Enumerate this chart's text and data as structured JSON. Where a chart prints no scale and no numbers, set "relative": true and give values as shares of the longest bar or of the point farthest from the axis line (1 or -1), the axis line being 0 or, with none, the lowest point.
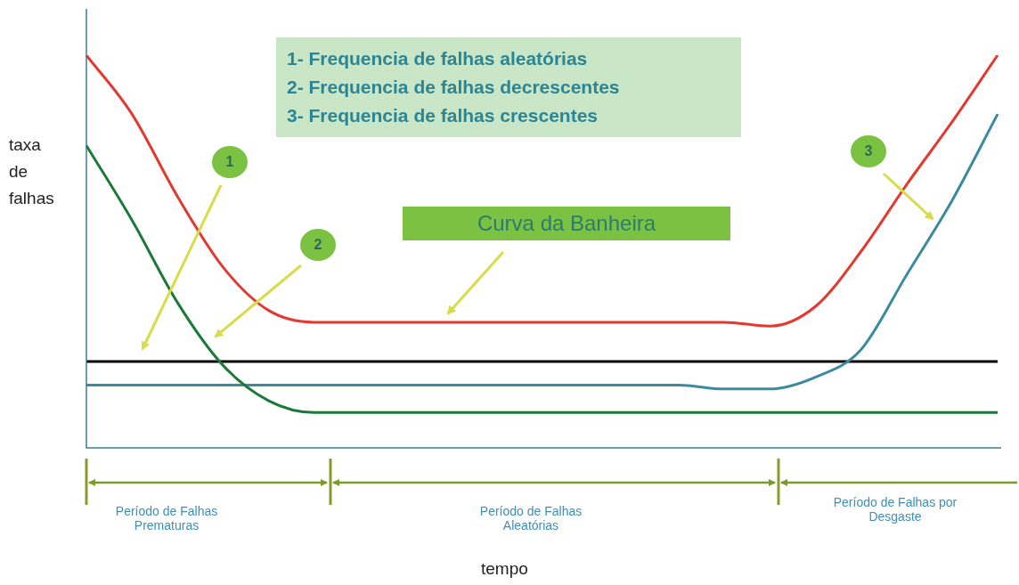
{
  "chart_data": {
    "type": "line",
    "relative": true,
    "marker": "none",
    "ylabel": "taxa de falhas",
    "categories": [
      null,
      null,
      null,
      null,
      null,
      null,
      null,
      null,
      null,
      null,
      null,
      null,
      null,
      null,
      null,
      null,
      null,
      null,
      null,
      null,
      null
    ],
    "series": [
      {
        "color": "#e3392f",
        "values": [
          1.0,
          0.85,
          0.64,
          0.46,
          0.35,
          0.32,
          0.32,
          0.32,
          0.32,
          0.32,
          0.32,
          0.32,
          0.32,
          0.32,
          0.32,
          0.31,
          0.36,
          0.5,
          0.67,
          0.83,
          1.0
        ]
      },
      {
        "color": "#1b7a3a",
        "values": [
          0.77,
          0.58,
          0.37,
          0.21,
          0.12,
          0.09,
          0.09,
          0.09,
          0.09,
          0.09,
          0.09,
          0.09,
          0.09,
          0.09,
          0.09,
          0.09,
          0.09,
          0.09,
          0.09,
          0.09,
          0.09
        ]
      },
      {
        "color": "#3a8c9c",
        "values": [
          0.16,
          0.16,
          0.16,
          0.16,
          0.16,
          0.16,
          0.16,
          0.16,
          0.16,
          0.16,
          0.16,
          0.16,
          0.16,
          0.16,
          0.15,
          0.15,
          0.18,
          0.25,
          0.44,
          0.63,
          0.85
        ]
      },
      {
        "color": "#000000",
        "values": [
          0.22,
          0.22,
          0.22,
          0.22,
          0.22,
          0.22,
          0.22,
          0.22,
          0.22,
          0.22,
          0.22,
          0.22,
          0.22,
          0.22,
          0.22,
          0.22,
          0.22,
          0.22,
          0.22,
          0.22,
          0.22
        ]
      }
    ],
    "annotations": [
      "1- Frequencia de falhas aleatórias",
      "2- Frequencia de falhas decrescentes",
      "3- Frequencia de falhas crescentes",
      "Curva da Banheira",
      "1",
      "2",
      "3",
      "Período de Falhas Prematuras",
      "Período de Falhas Aleatórias",
      "Período de Falhas por Desgaste",
      "tempo"
    ]
  }
}
